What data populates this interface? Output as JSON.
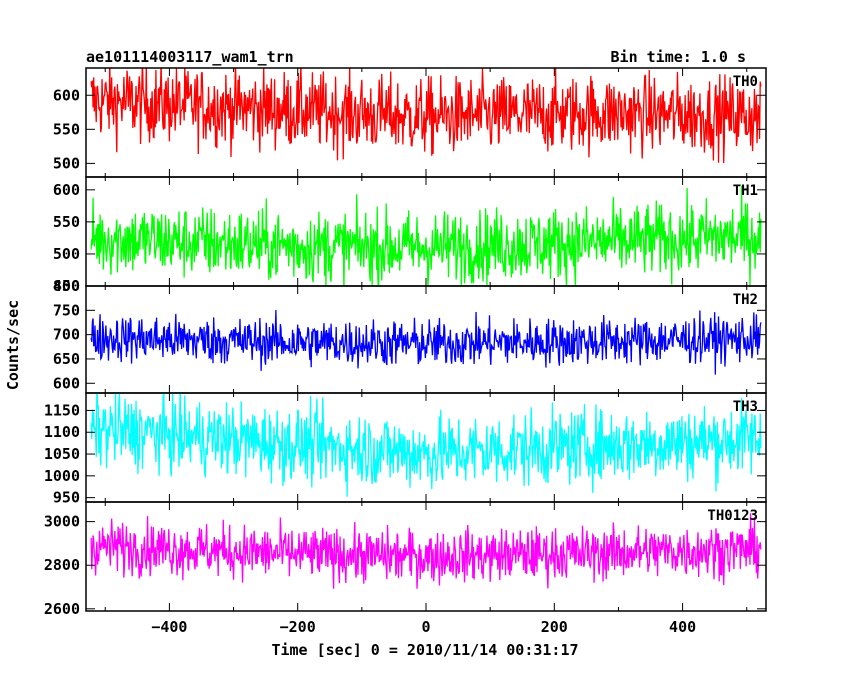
{
  "header": {
    "left_title": "ae101114003117_wam1_trn",
    "right_title": "Bin time: 1.0 s"
  },
  "axes": {
    "ylabel": "Counts/sec",
    "xlabel": "Time [sec] 0 = 2010/11/14 00:31:17"
  },
  "chart_data": {
    "type": "line",
    "title": "ae101114003117_wam1_trn",
    "bin_time": "Bin time: 1.0 s",
    "xlabel": "Time [sec] 0 = 2010/11/14 00:31:17",
    "ylabel": "Counts/sec",
    "xlim": [
      -530,
      530
    ],
    "xticks": [
      -400,
      -200,
      0,
      200,
      400
    ],
    "x_data_range": [
      -522,
      522
    ],
    "x_step": 1,
    "panels": [
      {
        "name": "TH0",
        "color": "#ff0000",
        "ylim": [
          480,
          640
        ],
        "yticks": [
          500,
          550,
          600
        ],
        "mean": 578,
        "noise": 28,
        "trend": [
          [
            -522,
            592
          ],
          [
            -200,
            578
          ],
          [
            0,
            568
          ],
          [
            250,
            574
          ],
          [
            522,
            570
          ]
        ]
      },
      {
        "name": "TH1",
        "color": "#00ff00",
        "ylim": [
          450,
          620
        ],
        "yticks": [
          450,
          500,
          550,
          600
        ],
        "mean": 518,
        "noise": 28,
        "trend": [
          [
            -522,
            525
          ],
          [
            -200,
            512
          ],
          [
            0,
            510
          ],
          [
            250,
            518
          ],
          [
            522,
            528
          ]
        ]
      },
      {
        "name": "TH2",
        "color": "#0000ff",
        "ylim": [
          580,
          800
        ],
        "yticks": [
          600,
          650,
          700,
          750,
          800
        ],
        "mean": 688,
        "noise": 24,
        "trend": [
          [
            -522,
            694
          ],
          [
            -200,
            684
          ],
          [
            0,
            682
          ],
          [
            250,
            686
          ],
          [
            522,
            692
          ]
        ]
      },
      {
        "name": "TH3",
        "color": "#00ffff",
        "ylim": [
          940,
          1190
        ],
        "yticks": [
          950,
          1000,
          1050,
          1100,
          1150
        ],
        "mean": 1075,
        "noise": 42,
        "trend": [
          [
            -522,
            1108
          ],
          [
            -200,
            1072
          ],
          [
            0,
            1052
          ],
          [
            250,
            1068
          ],
          [
            522,
            1085
          ]
        ]
      },
      {
        "name": "TH0123",
        "color": "#ff00ff",
        "ylim": [
          2590,
          3090
        ],
        "yticks": [
          2600,
          2800,
          3000
        ],
        "mean": 2860,
        "noise": 60,
        "trend": [
          [
            -522,
            2890
          ],
          [
            -200,
            2852
          ],
          [
            0,
            2840
          ],
          [
            250,
            2855
          ],
          [
            522,
            2875
          ]
        ]
      }
    ]
  }
}
